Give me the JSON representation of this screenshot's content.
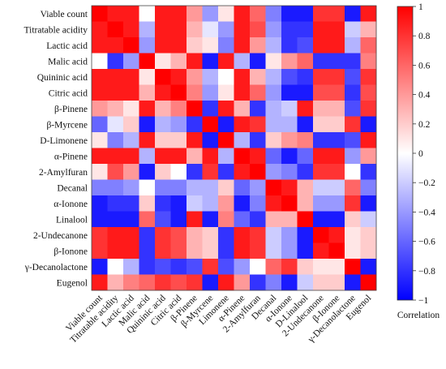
{
  "chart_data": {
    "type": "heatmap",
    "title": "",
    "variables": [
      "Viable count",
      "Titratable acidity",
      "Lactic acid",
      "Malic acid",
      "Quininic acid",
      "Citric acid",
      "β-Pinene",
      "β-Myrcene",
      "D-Limonene",
      "α-Pinene",
      "2-Amylfuran",
      "Decanal",
      "α-Ionone",
      "Linalool",
      "2-Undecanone",
      "β-Ionone",
      "γ-Decanolactone",
      "Eugenol"
    ],
    "column_labels": [
      "Viable count",
      "Titratable acidity",
      "Lactic acid",
      "Malic acid",
      "Quininic acid",
      "Citric acid",
      "β-Pinene",
      "β-Myrcene",
      "Limonene",
      "α-Pinene",
      "2-Amylfuran",
      "Decanal",
      "α-Ionone",
      "D-Linalool",
      "2-Undecanone",
      "β-Ionone",
      "γ-Decanolactone",
      "Eugenol"
    ],
    "matrix": [
      [
        1.0,
        0.9,
        0.9,
        0.0,
        0.9,
        0.9,
        0.4,
        -0.4,
        0.1,
        0.9,
        0.6,
        -0.5,
        -0.9,
        -0.9,
        0.8,
        0.8,
        -0.9,
        0.9
      ],
      [
        0.9,
        1.0,
        0.9,
        -0.3,
        0.9,
        0.9,
        0.3,
        -0.1,
        -0.4,
        0.9,
        0.7,
        -0.4,
        -0.8,
        -0.8,
        0.9,
        0.9,
        -0.2,
        0.3
      ],
      [
        0.9,
        0.9,
        1.0,
        -0.4,
        0.9,
        0.9,
        0.2,
        0.1,
        -0.5,
        0.9,
        0.4,
        -0.3,
        -0.8,
        -0.7,
        0.9,
        0.9,
        -0.3,
        0.6
      ],
      [
        0.0,
        -0.8,
        -0.4,
        1.0,
        0.1,
        0.3,
        0.9,
        -0.9,
        0.9,
        -0.3,
        -0.9,
        0.1,
        0.4,
        0.6,
        -0.8,
        -0.8,
        -0.8,
        0.5
      ],
      [
        0.9,
        0.9,
        0.9,
        0.1,
        1.0,
        0.9,
        0.4,
        -0.3,
        0.0,
        0.9,
        0.3,
        -0.3,
        -0.7,
        -0.8,
        0.8,
        0.8,
        -0.7,
        0.8
      ],
      [
        0.9,
        0.9,
        0.9,
        0.3,
        0.9,
        1.0,
        0.5,
        -0.4,
        0.1,
        0.9,
        0.6,
        -0.4,
        -0.9,
        -0.9,
        0.7,
        0.7,
        -0.8,
        0.7
      ],
      [
        0.4,
        0.3,
        0.1,
        0.9,
        0.3,
        0.5,
        1.0,
        -0.8,
        0.9,
        0.3,
        -0.8,
        -0.3,
        -0.2,
        0.9,
        0.3,
        0.3,
        -0.7,
        0.8
      ],
      [
        -0.6,
        -0.1,
        0.2,
        -0.9,
        -0.3,
        -0.4,
        -0.8,
        1.0,
        -0.9,
        0.9,
        0.8,
        -0.3,
        -0.3,
        -0.9,
        0.2,
        0.2,
        0.8,
        -0.9
      ],
      [
        0.1,
        -0.5,
        -0.3,
        0.9,
        0.2,
        0.2,
        0.9,
        -0.9,
        1.0,
        -0.3,
        -0.8,
        0.2,
        0.4,
        0.5,
        -0.8,
        -0.8,
        -0.7,
        0.9
      ],
      [
        0.9,
        0.9,
        0.9,
        -0.3,
        0.9,
        0.9,
        0.3,
        0.9,
        -0.3,
        1.0,
        0.9,
        -0.6,
        -0.9,
        -0.6,
        0.9,
        0.9,
        -0.4,
        0.4
      ],
      [
        0.1,
        0.7,
        0.4,
        -0.9,
        0.2,
        0.0,
        -0.8,
        0.8,
        -0.8,
        0.9,
        1.0,
        -0.4,
        -0.5,
        -0.8,
        0.8,
        0.8,
        0.0,
        -0.8
      ],
      [
        -0.5,
        -0.5,
        -0.4,
        0.0,
        -0.5,
        -0.5,
        -0.3,
        -0.3,
        0.2,
        -0.6,
        -0.4,
        1.0,
        0.9,
        0.3,
        -0.2,
        -0.2,
        0.6,
        -0.5
      ],
      [
        -0.9,
        -0.8,
        -0.8,
        0.2,
        -0.8,
        -0.9,
        -0.2,
        -0.3,
        0.4,
        -0.9,
        -0.5,
        0.9,
        1.0,
        0.3,
        -0.4,
        -0.4,
        0.8,
        -0.9
      ],
      [
        -0.9,
        -0.9,
        -0.9,
        0.6,
        -0.7,
        -0.9,
        0.9,
        -0.9,
        0.5,
        -0.6,
        -0.8,
        0.3,
        0.3,
        1.0,
        -0.9,
        -0.9,
        0.2,
        -0.2
      ],
      [
        0.8,
        0.9,
        0.9,
        -0.8,
        0.8,
        0.7,
        0.3,
        0.2,
        -0.8,
        0.9,
        0.8,
        -0.2,
        -0.4,
        -0.9,
        1.0,
        0.9,
        0.1,
        0.2
      ],
      [
        0.8,
        0.9,
        0.9,
        -0.8,
        0.8,
        0.7,
        0.3,
        0.2,
        -0.8,
        0.9,
        0.8,
        -0.2,
        -0.4,
        -0.9,
        0.9,
        1.0,
        0.1,
        0.2
      ],
      [
        -0.9,
        0.0,
        -0.3,
        -0.8,
        -0.7,
        -0.8,
        -0.7,
        0.8,
        -0.7,
        -0.4,
        0.0,
        0.6,
        0.8,
        0.2,
        0.1,
        0.1,
        1.0,
        -0.9
      ],
      [
        0.9,
        0.3,
        0.5,
        0.6,
        0.8,
        0.7,
        0.8,
        -0.9,
        0.9,
        0.4,
        -0.8,
        -0.5,
        -0.9,
        -0.2,
        0.2,
        0.2,
        -0.9,
        1.0
      ]
    ],
    "colorbar": {
      "ticks": [
        "1",
        "0.8",
        "0.6",
        "0.4",
        "0.2",
        "0",
        "−0.2",
        "−0.4",
        "−0.6",
        "−0.8",
        "−1"
      ],
      "label": "Correlation",
      "range": [
        -1,
        1
      ]
    },
    "colors": {
      "negative": "#0000FF",
      "zero": "#FFFFFF",
      "positive": "#FF0000"
    },
    "grid": false,
    "legend_position": "right"
  }
}
